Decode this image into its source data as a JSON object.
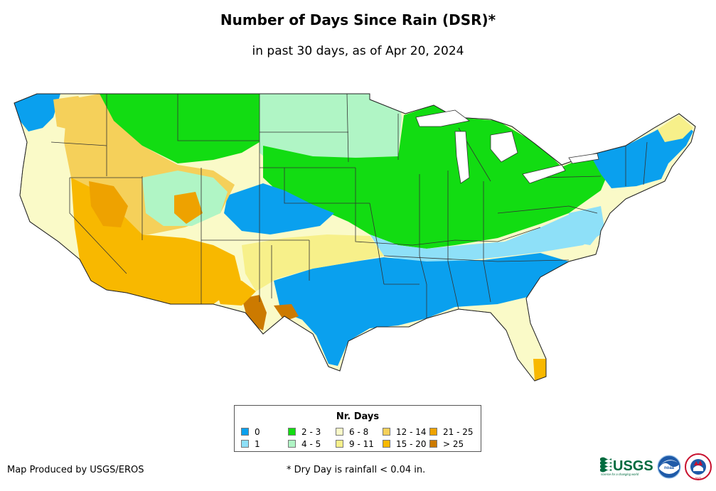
{
  "title": "Number of Days Since Rain (DSR)*",
  "subtitle": "in past 30 days, as of Apr 20, 2024",
  "legend": {
    "title": "Nr. Days",
    "items": [
      {
        "label": "0",
        "color": "#0aa0ee"
      },
      {
        "label": "1",
        "color": "#8ee0f8"
      },
      {
        "label": "2 - 3",
        "color": "#12dc12"
      },
      {
        "label": "4 - 5",
        "color": "#b0f5c5"
      },
      {
        "label": "6 - 8",
        "color": "#fafac8"
      },
      {
        "label": "9 - 11",
        "color": "#f7f08a"
      },
      {
        "label": "12 - 14",
        "color": "#f5d05a"
      },
      {
        "label": "15 - 20",
        "color": "#f8b800"
      },
      {
        "label": "21 - 25",
        "color": "#eea200"
      },
      {
        "label": "> 25",
        "color": "#cc7a00"
      }
    ]
  },
  "footer": {
    "credit": "Map Produced by USGS/EROS",
    "footnote": "* Dry Day is rainfall < 0.04 in."
  },
  "logos": {
    "usgs": "USGS",
    "usgs_tagline": "science for a changing world",
    "noaa": "noaa",
    "nws": "NWS"
  }
}
